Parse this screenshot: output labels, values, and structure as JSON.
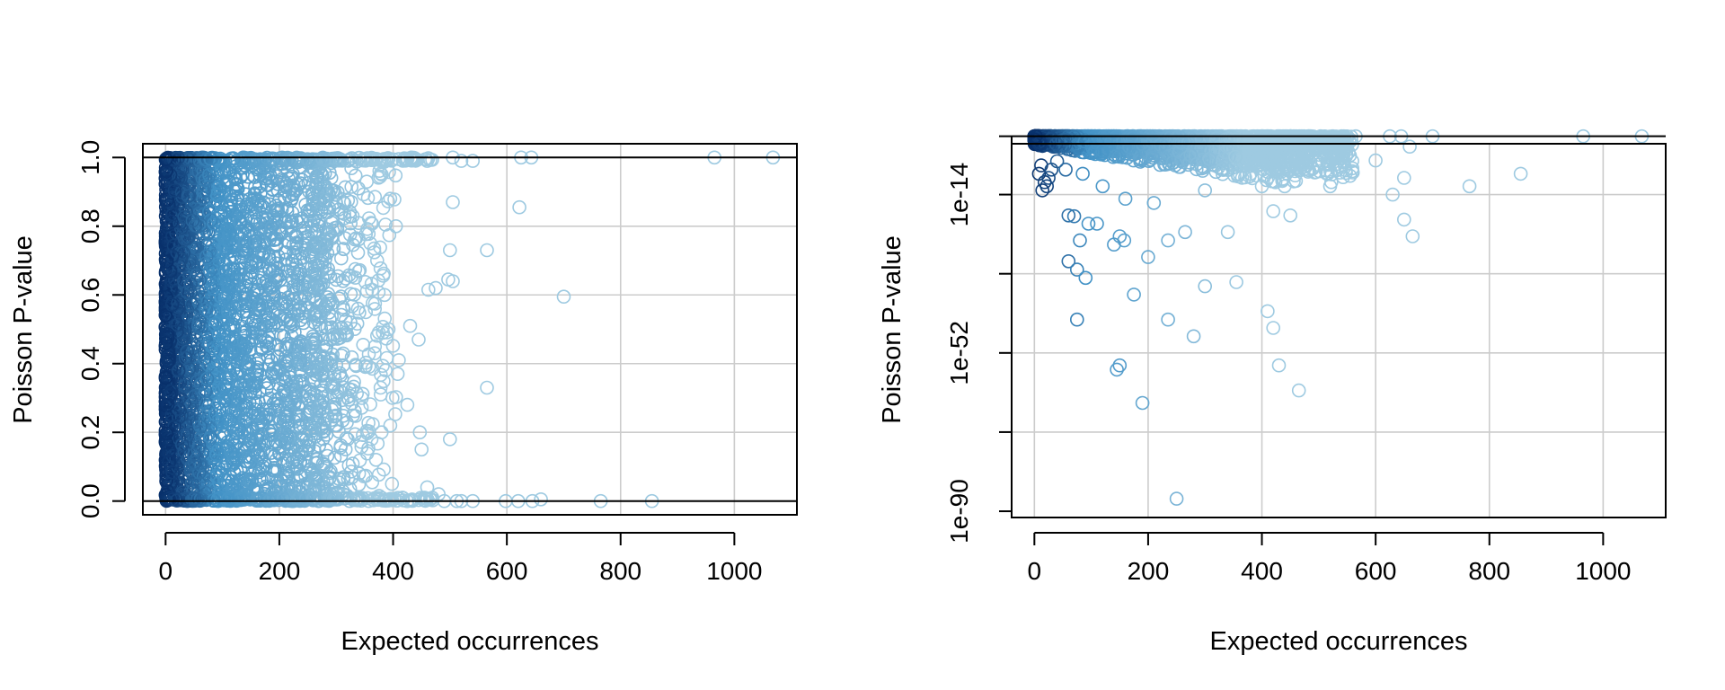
{
  "chart_data": [
    {
      "type": "scatter",
      "panel": "left",
      "xlabel": "Expected occurrences",
      "ylabel": "Poisson P-value",
      "y_scale": "linear",
      "xlim": [
        -40,
        1110
      ],
      "ylim": [
        -0.04,
        1.04
      ],
      "xticks": [
        0,
        200,
        400,
        600,
        800,
        1000
      ],
      "xtick_labels": [
        "0",
        "200",
        "400",
        "600",
        "800",
        "1000"
      ],
      "yticks": [
        0.0,
        0.2,
        0.4,
        0.6,
        0.8,
        1.0
      ],
      "ytick_labels": [
        "0.0",
        "0.2",
        "0.4",
        "0.6",
        "0.8",
        "1.0"
      ],
      "xgrid": [
        0,
        200,
        400,
        600,
        800,
        1000
      ],
      "ygrid": [
        0.0,
        0.2,
        0.4,
        0.6,
        0.8,
        1.0
      ],
      "reference_lines_y": [
        0.0,
        1.0
      ],
      "grid": true,
      "dense_band": {
        "x_max_core": 260,
        "x_max_tail": 420,
        "y_range": [
          0.0,
          1.0
        ]
      },
      "points": [
        [
          965,
          1.0
        ],
        [
          1068,
          1.0
        ],
        [
          625,
          1.0
        ],
        [
          643,
          1.0
        ],
        [
          505,
          1.0
        ],
        [
          540,
          0.99
        ],
        [
          460,
          0.99
        ],
        [
          432,
          1.0
        ],
        [
          520,
          0.99
        ],
        [
          505,
          0.87
        ],
        [
          622,
          0.855
        ],
        [
          700,
          0.595
        ],
        [
          565,
          0.73
        ],
        [
          500,
          0.73
        ],
        [
          497,
          0.645
        ],
        [
          505,
          0.64
        ],
        [
          475,
          0.62
        ],
        [
          462,
          0.615
        ],
        [
          565,
          0.33
        ],
        [
          410,
          0.41
        ],
        [
          445,
          0.47
        ],
        [
          430,
          0.51
        ],
        [
          425,
          0.28
        ],
        [
          408,
          0.37
        ],
        [
          500,
          0.18
        ],
        [
          447,
          0.2
        ],
        [
          450,
          0.15
        ],
        [
          480,
          0.02
        ],
        [
          460,
          0.04
        ],
        [
          455,
          0.01
        ],
        [
          598,
          0.0
        ],
        [
          620,
          0.0
        ],
        [
          645,
          0.0
        ],
        [
          660,
          0.005
        ],
        [
          765,
          0.0
        ],
        [
          855,
          0.0
        ],
        [
          512,
          0.0
        ],
        [
          520,
          0.0
        ],
        [
          540,
          0.0
        ],
        [
          490,
          0.0
        ],
        [
          380,
          0.95
        ],
        [
          395,
          0.88
        ],
        [
          405,
          0.8
        ],
        [
          372,
          0.7
        ],
        [
          385,
          0.6
        ],
        [
          392,
          0.5
        ],
        [
          368,
          0.45
        ],
        [
          378,
          0.33
        ],
        [
          395,
          0.22
        ],
        [
          370,
          0.12
        ],
        [
          398,
          0.05
        ],
        [
          360,
          0.75
        ],
        [
          352,
          0.55
        ],
        [
          345,
          0.3
        ],
        [
          362,
          0.18
        ],
        [
          340,
          0.08
        ]
      ],
      "series_color_by": "x (darker blue near 0)"
    },
    {
      "type": "scatter",
      "panel": "right",
      "xlabel": "Expected occurrences",
      "ylabel": "Poisson P-value",
      "y_scale": "log10",
      "xlim": [
        -40,
        1110
      ],
      "ylim_log10": [
        -91.5,
        -1.8
      ],
      "xticks": [
        0,
        200,
        400,
        600,
        800,
        1000
      ],
      "xtick_labels": [
        "0",
        "200",
        "400",
        "600",
        "800",
        "1000"
      ],
      "yticks_log10": [
        -14,
        -52,
        -90
      ],
      "ytick_labels": [
        "1e-14",
        "1e-52",
        "1e-90"
      ],
      "ygrid_log10": [
        0,
        -14,
        -33,
        -52,
        -71
      ],
      "minor_ticks_log10": [
        0,
        -33,
        -71
      ],
      "xgrid": [
        0,
        200,
        400,
        600,
        800,
        1000
      ],
      "reference_lines_log10": [
        0
      ],
      "grid": true,
      "points_log10": [
        [
          965,
          0
        ],
        [
          1068,
          0
        ],
        [
          700,
          0
        ],
        [
          565,
          0
        ],
        [
          625,
          0
        ],
        [
          645,
          0
        ],
        [
          540,
          0
        ],
        [
          515,
          -6.5
        ],
        [
          520,
          -12
        ],
        [
          522,
          -11
        ],
        [
          600,
          -5.8
        ],
        [
          630,
          -14
        ],
        [
          650,
          -10
        ],
        [
          660,
          -2.5
        ],
        [
          765,
          -12
        ],
        [
          855,
          -9
        ],
        [
          440,
          -12
        ],
        [
          450,
          -19
        ],
        [
          420,
          -18
        ],
        [
          650,
          -20
        ],
        [
          665,
          -24
        ],
        [
          340,
          -23
        ],
        [
          265,
          -23
        ],
        [
          235,
          -25
        ],
        [
          200,
          -29
        ],
        [
          150,
          -24
        ],
        [
          158,
          -25
        ],
        [
          140,
          -26
        ],
        [
          60,
          -30
        ],
        [
          75,
          -32
        ],
        [
          90,
          -34
        ],
        [
          60,
          -19
        ],
        [
          70,
          -19.2
        ],
        [
          95,
          -21
        ],
        [
          110,
          -21
        ],
        [
          80,
          -25
        ],
        [
          410,
          -42
        ],
        [
          420,
          -46
        ],
        [
          355,
          -35
        ],
        [
          300,
          -36
        ],
        [
          175,
          -38
        ],
        [
          75,
          -44
        ],
        [
          235,
          -44
        ],
        [
          280,
          -48
        ],
        [
          150,
          -55
        ],
        [
          145,
          -56
        ],
        [
          430,
          -55
        ],
        [
          465,
          -61
        ],
        [
          190,
          -64
        ],
        [
          250,
          -87
        ],
        [
          8,
          -9
        ],
        [
          12,
          -7
        ],
        [
          18,
          -11
        ],
        [
          22,
          -12
        ],
        [
          30,
          -8
        ],
        [
          14,
          -13
        ],
        [
          25,
          -10
        ],
        [
          40,
          -6
        ],
        [
          55,
          -8
        ],
        [
          85,
          -9
        ],
        [
          120,
          -12
        ],
        [
          160,
          -15
        ],
        [
          210,
          -16
        ],
        [
          300,
          -13
        ],
        [
          330,
          -8
        ],
        [
          400,
          -12
        ],
        [
          470,
          -6
        ],
        [
          380,
          -9
        ]
      ],
      "series_color_by": "x (darker blue near 0)"
    }
  ]
}
